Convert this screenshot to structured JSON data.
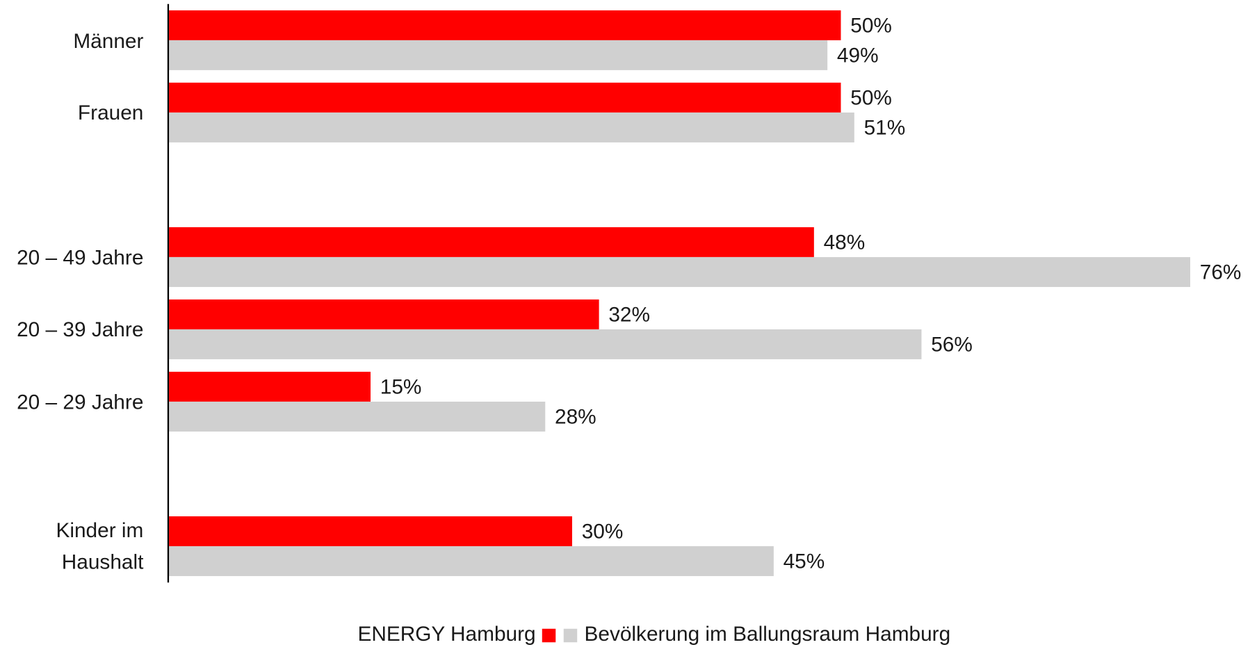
{
  "chart_data": {
    "type": "bar",
    "orientation": "horizontal",
    "categories": [
      "Männer",
      "Frauen",
      null,
      "20 – 49 Jahre",
      "20 – 39 Jahre",
      "20 – 29 Jahre",
      null,
      "Kinder im Haushalt"
    ],
    "series": [
      {
        "name": "ENERGY Hamburg",
        "color": "#ff0000",
        "values": [
          50,
          50,
          null,
          48,
          32,
          15,
          null,
          30
        ],
        "value_labels": [
          "50%",
          "50%",
          null,
          "48%",
          "32%",
          "15%",
          null,
          "30%"
        ]
      },
      {
        "name": "Bevölkerung im Ballungsraum Hamburg",
        "color": "#d0d0d0",
        "values": [
          49,
          51,
          null,
          76,
          56,
          28,
          null,
          45
        ],
        "value_labels": [
          "49%",
          "51%",
          null,
          "76%",
          "56%",
          "28%",
          null,
          "45%"
        ]
      }
    ],
    "legend": "bottom"
  }
}
